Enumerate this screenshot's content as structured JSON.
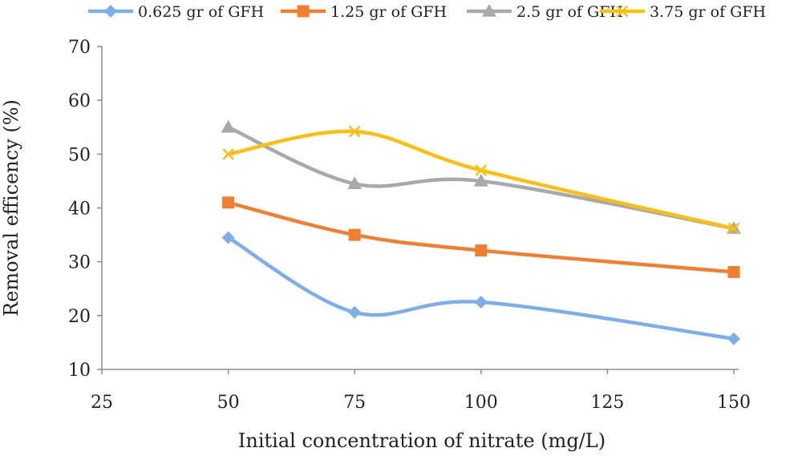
{
  "chart_data": {
    "type": "line",
    "xlabel": "Initial concentration of nitrate (mg/L)",
    "ylabel": "Removal efficency (%)",
    "xlim": [
      25,
      150
    ],
    "ylim": [
      10,
      70
    ],
    "x_ticks": [
      "25",
      "50",
      "75",
      "100",
      "125",
      "150"
    ],
    "y_ticks": [
      "10",
      "20",
      "30",
      "40",
      "50",
      "60",
      "70"
    ],
    "x": [
      50,
      75,
      100,
      150
    ],
    "grid": false,
    "legend_position": "top",
    "series": [
      {
        "name": "0.625 gr of GFH",
        "values": [
          34.5,
          20.6,
          22.5,
          15.7
        ],
        "color": "#7cafea",
        "marker": "diamond"
      },
      {
        "name": "1.25 gr of GFH",
        "values": [
          41.0,
          35.0,
          32.1,
          28.1
        ],
        "color": "#f07f31",
        "marker": "square"
      },
      {
        "name": "2.5 gr of GFH",
        "values": [
          55.0,
          44.5,
          45.0,
          36.2
        ],
        "color": "#a9a9a9",
        "marker": "triangle"
      },
      {
        "name": "3.75 gr of GFH",
        "values": [
          50.0,
          54.2,
          47.0,
          36.2
        ],
        "color": "#fbbf12",
        "marker": "x"
      }
    ]
  }
}
